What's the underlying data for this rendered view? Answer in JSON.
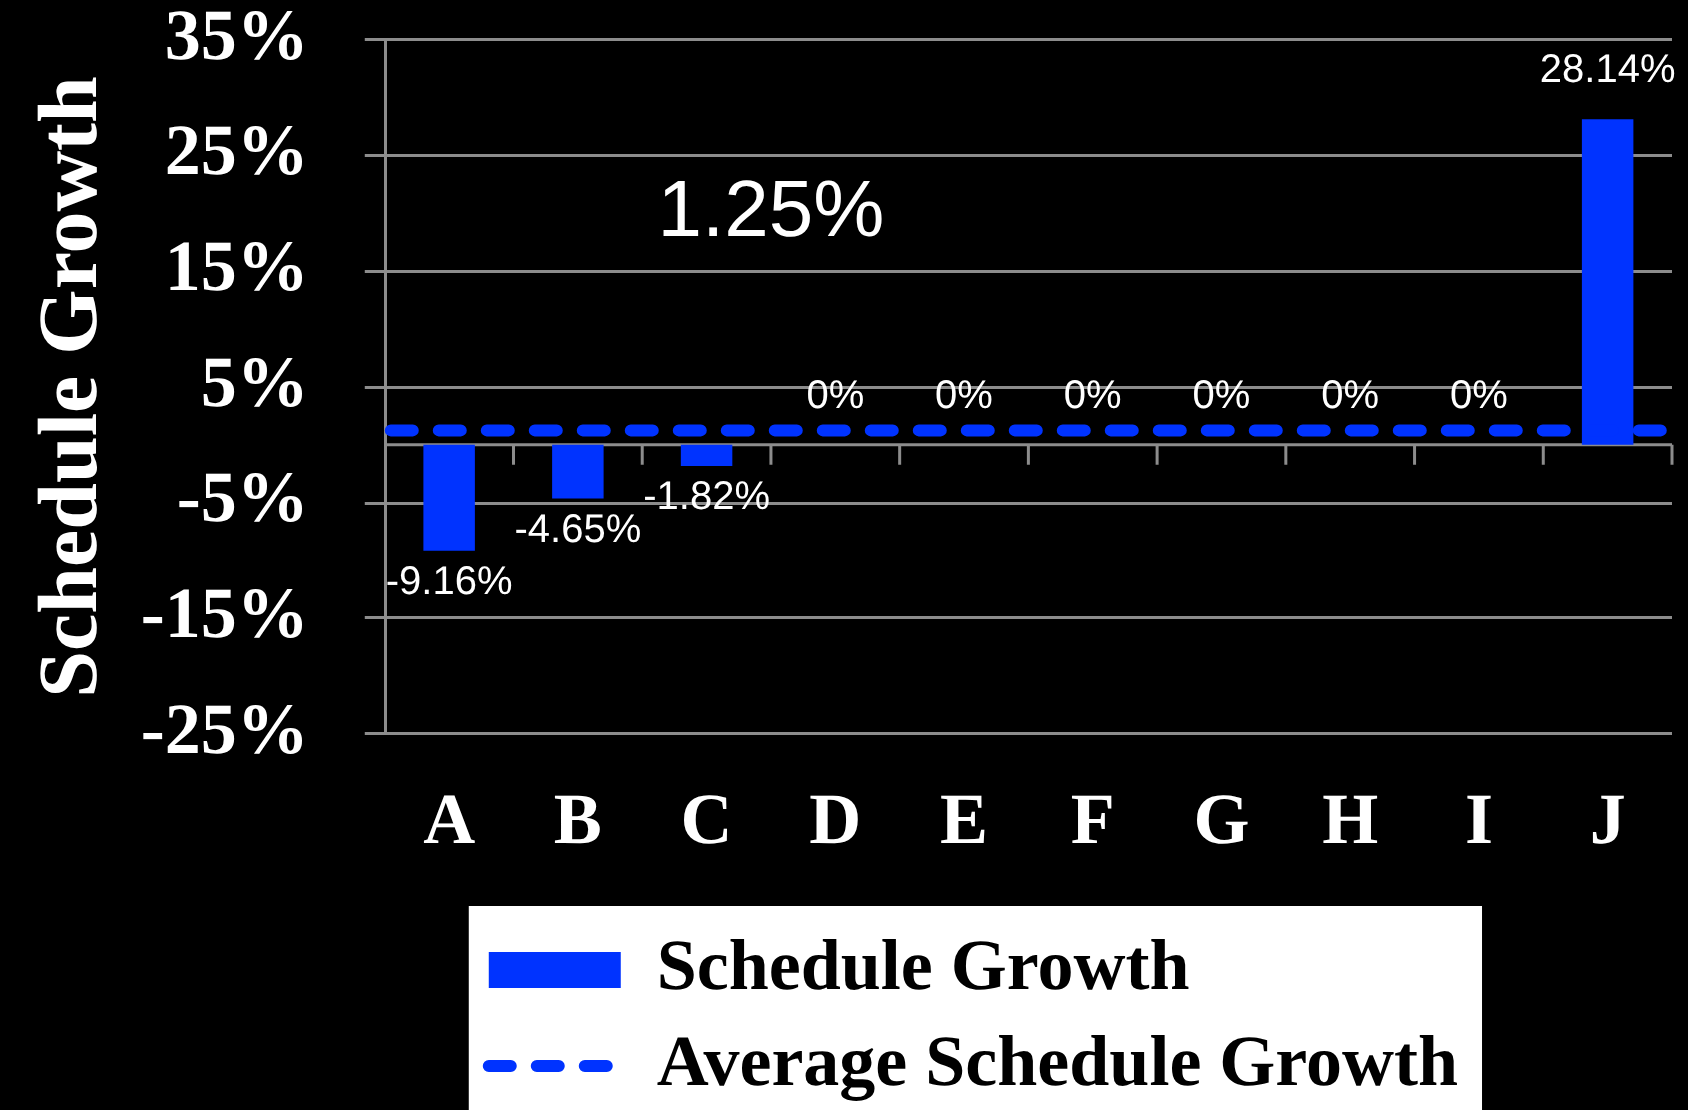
{
  "chart_data": {
    "type": "bar",
    "ylabel": "Schedule Growth",
    "categories": [
      "A",
      "B",
      "C",
      "D",
      "E",
      "F",
      "G",
      "H",
      "I",
      "J"
    ],
    "series": [
      {
        "name": "Schedule Growth",
        "color": "#0033ff",
        "values": [
          -9.16,
          -4.65,
          -1.82,
          0,
          0,
          0,
          0,
          0,
          0,
          28.14
        ],
        "value_labels": [
          "-9.16%",
          "-4.65%",
          "-1.82%",
          "0%",
          "0%",
          "0%",
          "0%",
          "0%",
          "0%",
          "28.14%"
        ]
      }
    ],
    "ylim": [
      -25,
      35
    ],
    "yticks": [
      {
        "value": 35,
        "label": "35%"
      },
      {
        "value": 25,
        "label": "25%"
      },
      {
        "value": 15,
        "label": "15%"
      },
      {
        "value": 5,
        "label": "5%"
      },
      {
        "value": -5,
        "label": "-5%"
      },
      {
        "value": -15,
        "label": "-15%"
      },
      {
        "value": -25,
        "label": "-25%"
      }
    ],
    "ref_lines": [
      {
        "axis": "y",
        "value": 1.25,
        "label": "Average Schedule Growth",
        "color": "#0033ff",
        "line_style": "dashed"
      }
    ],
    "annotations": [
      "1.25%"
    ],
    "grid": "y",
    "legend": "bottom"
  }
}
